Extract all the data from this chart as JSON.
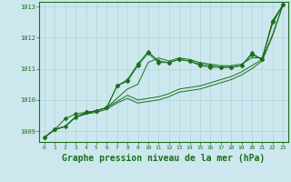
{
  "background_color": "#cce8ee",
  "grid_color": "#b0d4da",
  "line_color": "#1a6e1a",
  "xlabel": "Graphe pression niveau de la mer (hPa)",
  "xlabel_fontsize": 7,
  "yticks": [
    1009,
    1010,
    1011,
    1012,
    1013
  ],
  "xticks": [
    0,
    1,
    2,
    3,
    4,
    5,
    6,
    7,
    8,
    9,
    10,
    11,
    12,
    13,
    14,
    15,
    16,
    17,
    18,
    19,
    20,
    21,
    22,
    23
  ],
  "ylim": [
    1008.65,
    1013.15
  ],
  "xlim": [
    -0.5,
    23.5
  ],
  "series": [
    [
      1008.8,
      1009.05,
      1009.15,
      1009.45,
      1009.55,
      1009.65,
      1009.75,
      1010.05,
      1010.35,
      1010.5,
      1011.2,
      1011.35,
      1011.25,
      1011.35,
      1011.3,
      1011.2,
      1011.15,
      1011.1,
      1011.1,
      1011.15,
      1011.35,
      1011.35,
      1012.45,
      1013.05
    ],
    [
      1008.8,
      1009.05,
      1009.4,
      1009.55,
      1009.6,
      1009.65,
      1009.75,
      1010.45,
      1010.6,
      1011.1,
      1011.5,
      1011.2,
      1011.2,
      1011.3,
      1011.25,
      1011.15,
      1011.1,
      1011.05,
      1011.05,
      1011.1,
      1011.45,
      1011.3,
      1012.5,
      1013.05
    ],
    [
      1008.8,
      1009.05,
      1009.15,
      1009.45,
      1009.6,
      1009.65,
      1009.75,
      1010.45,
      1010.65,
      1011.15,
      1011.55,
      1011.25,
      1011.2,
      1011.3,
      1011.25,
      1011.1,
      1011.05,
      1011.05,
      1011.05,
      1011.1,
      1011.5,
      1011.3,
      1012.55,
      1013.05
    ],
    [
      1008.8,
      1009.05,
      1009.15,
      1009.45,
      1009.55,
      1009.65,
      1009.75,
      1009.95,
      1010.15,
      1010.0,
      1010.05,
      1010.1,
      1010.2,
      1010.35,
      1010.4,
      1010.45,
      1010.55,
      1010.65,
      1010.75,
      1010.9,
      1011.1,
      1011.3,
      1012.1,
      1013.05
    ],
    [
      1008.8,
      1009.05,
      1009.15,
      1009.45,
      1009.55,
      1009.6,
      1009.7,
      1009.9,
      1010.05,
      1009.9,
      1009.95,
      1010.0,
      1010.1,
      1010.25,
      1010.3,
      1010.35,
      1010.45,
      1010.55,
      1010.65,
      1010.8,
      1011.0,
      1011.25,
      1012.05,
      1013.05
    ]
  ],
  "marker_series": [
    1,
    2
  ],
  "marker": "D",
  "marker_size": 2.5
}
